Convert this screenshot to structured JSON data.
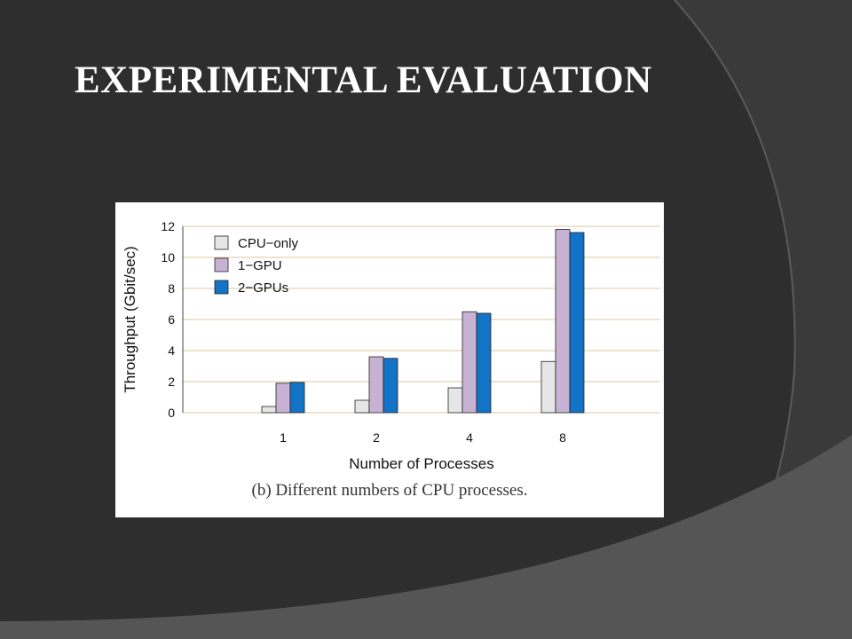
{
  "slide": {
    "title": "EXPERIMENTAL EVALUATION",
    "caption": "(b) Different numbers of CPU processes."
  },
  "colors": {
    "background": "#3a3a3a",
    "curve_dark": "#2e2e2e",
    "curve_light": "#555555",
    "panel": "#ffffff",
    "grid": "#d9c8a0"
  },
  "chart_data": {
    "type": "bar",
    "title": "",
    "xlabel": "Number of Processes",
    "ylabel": "Throughput (Gbit/sec)",
    "categories": [
      "1",
      "2",
      "4",
      "8"
    ],
    "ylim": [
      0,
      12
    ],
    "yticks": [
      0,
      2,
      4,
      6,
      8,
      10,
      12
    ],
    "grid": true,
    "legend_position": "top-left",
    "series": [
      {
        "name": "CPU−only",
        "color": "#e6e6e6",
        "values": [
          0.4,
          0.8,
          1.6,
          3.3
        ]
      },
      {
        "name": "1−GPU",
        "color": "#c8b2d4",
        "values": [
          1.9,
          3.6,
          6.5,
          11.8
        ]
      },
      {
        "name": "2−GPUs",
        "color": "#1373c6",
        "values": [
          1.95,
          3.5,
          6.4,
          11.6
        ]
      }
    ]
  }
}
